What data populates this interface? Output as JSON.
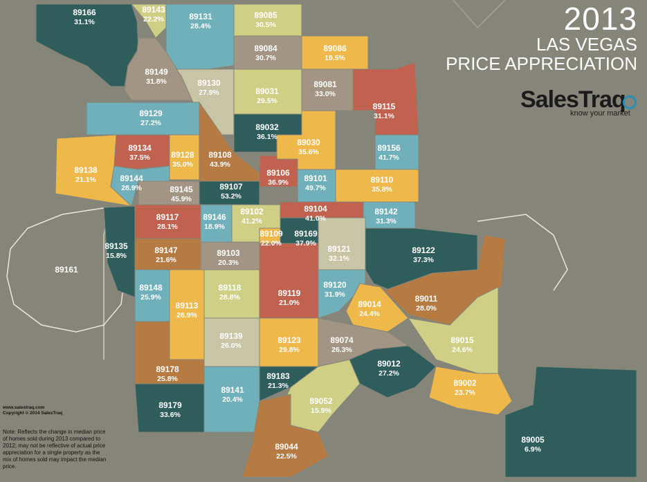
{
  "title": {
    "year": "2013",
    "line1": "LAS VEGAS",
    "line2": "PRICE APPRECIATION"
  },
  "brand": {
    "name": "SalesTraq",
    "tagline": "know your market"
  },
  "footer": {
    "website": "www.salestraq.com",
    "copyright": "Copyright © 2014 SalesTraq",
    "note": "Note: Reflects the change in median price of homes sold during 2013 compared to 2012; may not be reflective of actual price appreciation for a single property as the mix of homes sold may impact the median price."
  },
  "colors": {
    "background": "#858579",
    "teal": "#2f5d5b",
    "rust": "#c0624f",
    "light-blue": "#6fb0ba",
    "olive": "#cfcf86",
    "gold": "#eeb84a",
    "taupe": "#a39583",
    "brown": "#b67a43",
    "khaki": "#c8c5a6"
  },
  "zips": [
    {
      "zip": "89166",
      "pct": "31.1%",
      "color": "#2f5d5b"
    },
    {
      "zip": "89143",
      "pct": "22.2%",
      "color": "#cfcf86"
    },
    {
      "zip": "89131",
      "pct": "28.4%",
      "color": "#6fb0ba"
    },
    {
      "zip": "89085",
      "pct": "30.5%",
      "color": "#cfcf86"
    },
    {
      "zip": "89084",
      "pct": "30.7%",
      "color": "#a39583"
    },
    {
      "zip": "89086",
      "pct": "19.5%",
      "color": "#eeb84a"
    },
    {
      "zip": "89149",
      "pct": "31.8%",
      "color": "#a39583"
    },
    {
      "zip": "89130",
      "pct": "27.9%",
      "color": "#c8c5a6"
    },
    {
      "zip": "89031",
      "pct": "29.5%",
      "color": "#cfcf86"
    },
    {
      "zip": "89081",
      "pct": "33.0%",
      "color": "#a39583"
    },
    {
      "zip": "89115",
      "pct": "31.1%",
      "color": "#c0624f"
    },
    {
      "zip": "89129",
      "pct": "27.2%",
      "color": "#6fb0ba"
    },
    {
      "zip": "89032",
      "pct": "36.1%",
      "color": "#2f5d5b"
    },
    {
      "zip": "89030",
      "pct": "35.6%",
      "color": "#eeb84a"
    },
    {
      "zip": "89156",
      "pct": "41.7%",
      "color": "#6fb0ba"
    },
    {
      "zip": "89134",
      "pct": "37.5%",
      "color": "#c0624f"
    },
    {
      "zip": "89128",
      "pct": "35.0%",
      "color": "#eeb84a"
    },
    {
      "zip": "89108",
      "pct": "43.9%",
      "color": "#b67a43"
    },
    {
      "zip": "89138",
      "pct": "21.1%",
      "color": "#eeb84a"
    },
    {
      "zip": "89106",
      "pct": "36.9%",
      "color": "#c0624f"
    },
    {
      "zip": "89144",
      "pct": "28.9%",
      "color": "#6fb0ba"
    },
    {
      "zip": "89101",
      "pct": "49.7%",
      "color": "#6fb0ba"
    },
    {
      "zip": "89110",
      "pct": "35.8%",
      "color": "#eeb84a"
    },
    {
      "zip": "89107",
      "pct": "53.2%",
      "color": "#2f5d5b"
    },
    {
      "zip": "89145",
      "pct": "45.9%",
      "color": "#a39583"
    },
    {
      "zip": "89104",
      "pct": "41.0%",
      "color": "#c0624f"
    },
    {
      "zip": "89142",
      "pct": "31.3%",
      "color": "#6fb0ba"
    },
    {
      "zip": "89117",
      "pct": "28.1%",
      "color": "#c0624f"
    },
    {
      "zip": "89146",
      "pct": "18.9%",
      "color": "#6fb0ba"
    },
    {
      "zip": "89102",
      "pct": "41.2%",
      "color": "#cfcf86"
    },
    {
      "zip": "89109",
      "pct": "22.0%",
      "color": "#eeb84a"
    },
    {
      "zip": "89169",
      "pct": "37.9%",
      "color": "#2f5d5b"
    },
    {
      "zip": "89121",
      "pct": "32.1%",
      "color": "#c8c5a6"
    },
    {
      "zip": "89122",
      "pct": "37.3%",
      "color": "#2f5d5b"
    },
    {
      "zip": "89135",
      "pct": "15.8%",
      "color": "#2f5d5b"
    },
    {
      "zip": "89147",
      "pct": "21.6%",
      "color": "#b67a43"
    },
    {
      "zip": "89103",
      "pct": "20.3%",
      "color": "#a39583"
    },
    {
      "zip": "89161",
      "pct": "",
      "color": ""
    },
    {
      "zip": "89148",
      "pct": "25.9%",
      "color": "#6fb0ba"
    },
    {
      "zip": "89118",
      "pct": "28.8%",
      "color": "#cfcf86"
    },
    {
      "zip": "89119",
      "pct": "21.0%",
      "color": "#c0624f"
    },
    {
      "zip": "89120",
      "pct": "31.9%",
      "color": "#6fb0ba"
    },
    {
      "zip": "89014",
      "pct": "24.4%",
      "color": "#eeb84a"
    },
    {
      "zip": "89011",
      "pct": "28.0%",
      "color": "#b67a43"
    },
    {
      "zip": "89113",
      "pct": "26.9%",
      "color": "#eeb84a"
    },
    {
      "zip": "89139",
      "pct": "26.0%",
      "color": "#c8c5a6"
    },
    {
      "zip": "89123",
      "pct": "29.8%",
      "color": "#eeb84a"
    },
    {
      "zip": "89074",
      "pct": "26.3%",
      "color": "#a39583"
    },
    {
      "zip": "89015",
      "pct": "24.6%",
      "color": "#cfcf86"
    },
    {
      "zip": "89178",
      "pct": "25.8%",
      "color": "#b67a43"
    },
    {
      "zip": "89183",
      "pct": "21.3%",
      "color": "#2f5d5b"
    },
    {
      "zip": "89012",
      "pct": "27.2%",
      "color": "#2f5d5b"
    },
    {
      "zip": "89141",
      "pct": "20.4%",
      "color": "#6fb0ba"
    },
    {
      "zip": "89002",
      "pct": "23.7%",
      "color": "#eeb84a"
    },
    {
      "zip": "89179",
      "pct": "33.6%",
      "color": "#2f5d5b"
    },
    {
      "zip": "89052",
      "pct": "15.9%",
      "color": "#cfcf86"
    },
    {
      "zip": "89044",
      "pct": "22.5%",
      "color": "#b67a43"
    },
    {
      "zip": "89005",
      "pct": "6.9%",
      "color": "#2f5d5b"
    }
  ]
}
